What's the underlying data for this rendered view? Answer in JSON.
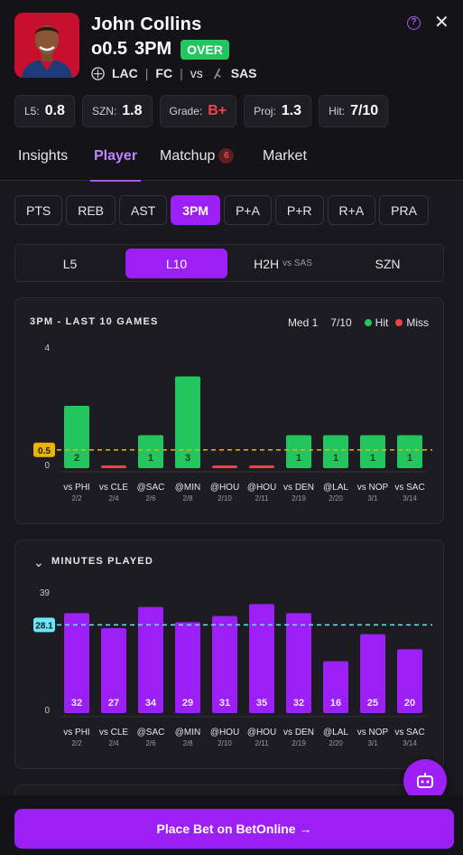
{
  "player": {
    "name": "John Collins",
    "line": "o0.5",
    "stat": "3PM",
    "pick": "OVER",
    "team": "LAC",
    "position": "FC",
    "vs": "vs",
    "opponent": "SAS"
  },
  "stats": [
    {
      "label": "L5:",
      "value": "0.8"
    },
    {
      "label": "SZN:",
      "value": "1.8"
    },
    {
      "label": "Grade:",
      "value": "B+"
    },
    {
      "label": "Proj:",
      "value": "1.3"
    },
    {
      "label": "Hit:",
      "value": "7/10"
    }
  ],
  "tabs": [
    {
      "label": "Insights"
    },
    {
      "label": "Player"
    },
    {
      "label": "Matchup",
      "badge": "6"
    },
    {
      "label": "Market"
    }
  ],
  "stat_pills": [
    "PTS",
    "REB",
    "AST",
    "3PM",
    "P+A",
    "P+R",
    "R+A",
    "PRA"
  ],
  "ranges": [
    {
      "label": "L5",
      "sub": ""
    },
    {
      "label": "L10",
      "sub": ""
    },
    {
      "label": "H2H",
      "sub": "vs SAS"
    },
    {
      "label": "SZN",
      "sub": ""
    }
  ],
  "games_chart": {
    "title": "3PM - LAST 10 GAMES",
    "median_label": "Med 1",
    "hit_rate": "7/10",
    "legend_hit": "Hit",
    "legend_miss": "Miss"
  },
  "minutes_chart": {
    "title": "MINUTES PLAYED"
  },
  "chart_data": [
    {
      "type": "bar",
      "title": "3PM - LAST 10 GAMES",
      "categories": [
        "vs PHI",
        "vs CLE",
        "@SAC",
        "@MIN",
        "@HOU",
        "@HOU",
        "vs DEN",
        "@LAL",
        "vs NOP",
        "vs SAC"
      ],
      "dates": [
        "2/2",
        "2/4",
        "2/6",
        "2/8",
        "2/10",
        "2/11",
        "2/19",
        "2/20",
        "3/1",
        "3/14"
      ],
      "values": [
        2,
        0,
        1,
        3,
        0,
        0,
        1,
        1,
        1,
        1
      ],
      "line": 0.5,
      "line_label": "0.5",
      "ylim": [
        0,
        4
      ],
      "y_ticks": [
        "4",
        "0"
      ],
      "hit_color": "#22c55e",
      "miss_color": "#ef4444",
      "line_color": "#eab308"
    },
    {
      "type": "bar",
      "title": "MINUTES PLAYED",
      "categories": [
        "vs PHI",
        "vs CLE",
        "@SAC",
        "@MIN",
        "@HOU",
        "@HOU",
        "vs DEN",
        "@LAL",
        "vs NOP",
        "vs SAC"
      ],
      "dates": [
        "2/2",
        "2/4",
        "2/6",
        "2/8",
        "2/10",
        "2/11",
        "2/19",
        "2/20",
        "3/1",
        "3/14"
      ],
      "values": [
        32,
        27,
        34,
        29,
        31,
        35,
        32,
        16,
        25,
        20
      ],
      "average": 28.1,
      "average_label": "28.1",
      "ylim": [
        0,
        39
      ],
      "y_ticks": [
        "39",
        "0"
      ],
      "bar_color": "#9c1ff5",
      "line_color": "#67e8f9"
    }
  ],
  "cta": {
    "label": "Place Bet on BetOnline →"
  }
}
